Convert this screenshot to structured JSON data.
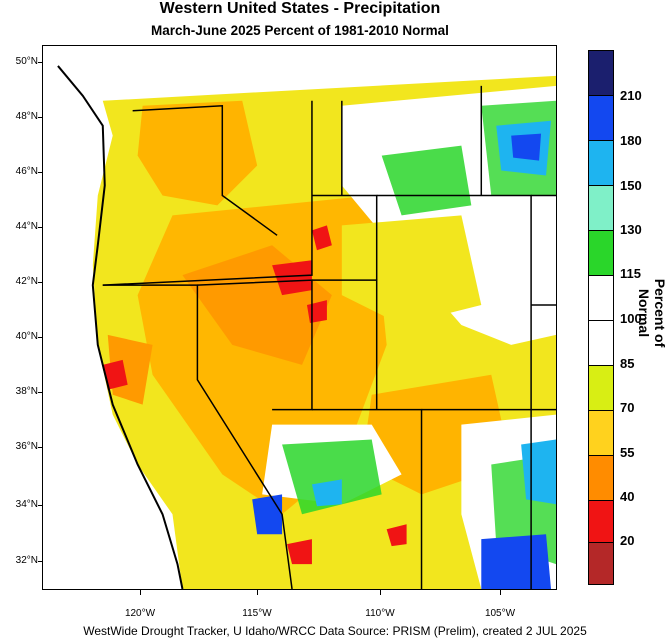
{
  "title": "Western United States - Precipitation",
  "subtitle": "March-June 2025  Percent of 1981-2010 Normal",
  "lat_labels": [
    "50°N",
    "48°N",
    "46°N",
    "44°N",
    "42°N",
    "40°N",
    "38°N",
    "36°N",
    "34°N",
    "32°N"
  ],
  "lon_labels": [
    "120°W",
    "115°W",
    "110°W",
    "105°W"
  ],
  "colorbar": {
    "title": "Percent of Normal",
    "levels": [
      "210",
      "180",
      "150",
      "130",
      "115",
      "100",
      "85",
      "70",
      "55",
      "40",
      "20"
    ],
    "colors": [
      "#1b1f6e",
      "#1348f0",
      "#1eb4f0",
      "#7ff0c8",
      "#2ad62a",
      "#ffffff",
      "#ffffff",
      "#d8ee14",
      "#ffd21e",
      "#ff8c00",
      "#f01414",
      "#b42828"
    ]
  },
  "footer": "WestWide Drought Tracker, U Idaho/WRCC Data Source: PRISM (Prelim), created  2 JUL 2025"
}
